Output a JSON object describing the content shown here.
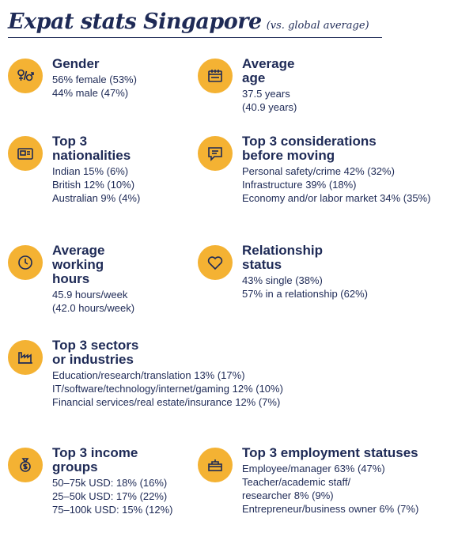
{
  "title": "Expat stats Singapore",
  "subtitle": "(vs. global average)",
  "blocks": {
    "gender": {
      "icon": "gender-icon",
      "heading": [
        "Gender"
      ],
      "lines": [
        "56% female (53%)",
        "44% male (47%)"
      ]
    },
    "age": {
      "icon": "calendar-icon",
      "heading": [
        "Average age"
      ],
      "lines": [
        "37.5 years",
        "(40.9 years)"
      ]
    },
    "nationalities": {
      "icon": "passport-icon",
      "heading": [
        "Top 3",
        "nationalities"
      ],
      "lines": [
        "Indian 15% (6%)",
        "British 12% (10%)",
        "Australian 9% (4%)"
      ]
    },
    "considerations": {
      "icon": "speech-bubble-icon",
      "heading": [
        "Top 3 considerations",
        "before moving"
      ],
      "lines": [
        "Personal safety/crime 42% (32%)",
        "Infrastructure 39% (18%)",
        "Economy and/or labor market 34% (35%)"
      ]
    },
    "hours": {
      "icon": "clock-icon",
      "heading": [
        "Average",
        "working hours"
      ],
      "lines": [
        "45.9 hours/week",
        "(42.0 hours/week)"
      ]
    },
    "relationship": {
      "icon": "heart-icon",
      "heading": [
        "Relationship",
        "status"
      ],
      "lines": [
        "43% single (38%)",
        "57% in a relationship (62%)"
      ]
    },
    "sectors": {
      "icon": "factory-icon",
      "heading": [
        "Top 3 sectors",
        "or industries"
      ],
      "lines": [
        "Education/research/translation 13% (17%)",
        "IT/software/technology/internet/gaming 12% (10%)",
        "Financial services/real estate/insurance 12% (7%)"
      ]
    },
    "income": {
      "icon": "money-bag-icon",
      "heading": [
        "Top 3 income",
        "groups"
      ],
      "lines": [
        "50–75k USD: 18% (16%)",
        "25–50k USD: 17% (22%)",
        "75–100k USD: 15% (12%)"
      ]
    },
    "employment": {
      "icon": "desk-icon",
      "heading": [
        "Top 3 employment statuses"
      ],
      "lines": [
        "Employee/manager 63% (47%)",
        "Teacher/academic staff/",
        "researcher 8% (9%)",
        "Entrepreneur/business owner 6% (7%)"
      ]
    }
  }
}
